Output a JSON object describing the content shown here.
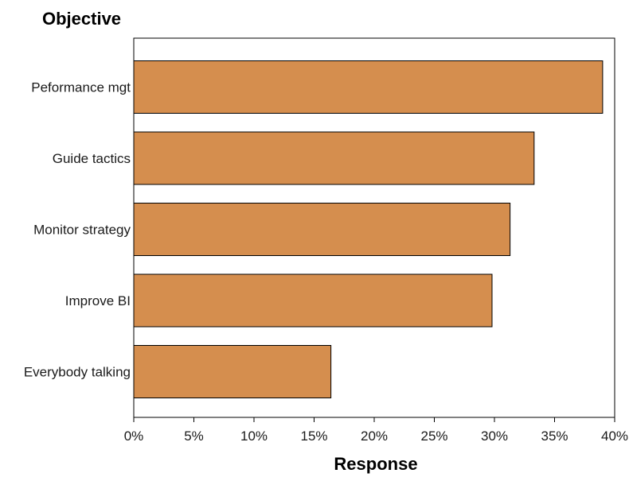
{
  "chart_data": {
    "type": "bar",
    "orientation": "horizontal",
    "title": "Objective",
    "xlabel": "Response",
    "ylabel": "",
    "categories": [
      "Peformance mgt",
      "Guide tactics",
      "Monitor strategy",
      "Improve BI",
      "Everybody talking"
    ],
    "values": [
      0.39,
      0.333,
      0.313,
      0.298,
      0.164
    ],
    "xlim": [
      0,
      0.4
    ],
    "xticks": [
      0,
      0.05,
      0.1,
      0.15,
      0.2,
      0.25,
      0.3,
      0.35,
      0.4
    ],
    "xtick_labels": [
      "0%",
      "5%",
      "10%",
      "15%",
      "20%",
      "25%",
      "30%",
      "35%",
      "40%"
    ],
    "grid": false,
    "legend": "none",
    "colors": {
      "bar_fill": "#d58e4e",
      "bar_stroke": "#000000",
      "frame": "#000000"
    }
  }
}
